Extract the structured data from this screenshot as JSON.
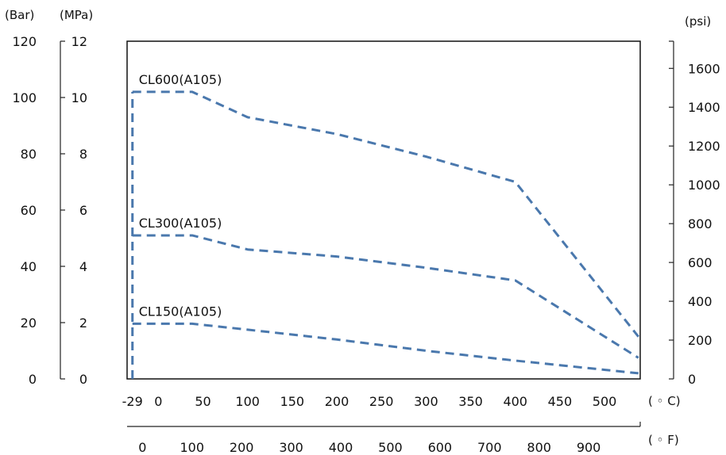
{
  "chart_data": {
    "type": "line",
    "title": "",
    "units": {
      "bar": "(Bar)",
      "mpa": "(MPa)",
      "psi": "(psi)",
      "celsius": "( ◦ C)",
      "fahrenheit": "( ◦ F)"
    },
    "axes": {
      "bar": {
        "ticks": [
          "0",
          "20",
          "40",
          "60",
          "80",
          "100",
          "120"
        ],
        "range": [
          0,
          120
        ]
      },
      "mpa": {
        "ticks": [
          "0",
          "2",
          "4",
          "6",
          "8",
          "10",
          "12"
        ],
        "range": [
          0,
          12
        ]
      },
      "psi": {
        "ticks": [
          "0",
          "200",
          "400",
          "600",
          "800",
          "1000",
          "1200",
          "1400",
          "1600"
        ],
        "range": [
          0,
          1740
        ]
      },
      "celsius": {
        "ticks": [
          "-29",
          "0",
          "50",
          "100",
          "150",
          "200",
          "250",
          "300",
          "350",
          "400",
          "450",
          "500"
        ],
        "range": [
          -35,
          540
        ]
      },
      "fahrenheit": {
        "ticks": [
          "0",
          "100",
          "200",
          "300",
          "400",
          "500",
          "600",
          "700",
          "800",
          "900"
        ],
        "range": [
          -31,
          1004
        ]
      }
    },
    "xlabel": "",
    "ylabel": "",
    "series": [
      {
        "name": "CL600(A105)",
        "x": [
          -29,
          38,
          100,
          200,
          300,
          400,
          538
        ],
        "y": [
          10.2,
          10.2,
          9.3,
          8.7,
          7.9,
          7.0,
          1.5
        ]
      },
      {
        "name": "CL300(A105)",
        "x": [
          -29,
          38,
          100,
          200,
          300,
          400,
          538
        ],
        "y": [
          5.1,
          5.1,
          4.6,
          4.35,
          3.95,
          3.5,
          0.75
        ]
      },
      {
        "name": "CL150(A105)",
        "x": [
          -29,
          38,
          100,
          200,
          300,
          400,
          538
        ],
        "y": [
          1.96,
          1.96,
          1.75,
          1.4,
          1.0,
          0.65,
          0.2
        ]
      }
    ],
    "grid": false,
    "legend": "none",
    "line_color": "#4a78ad"
  }
}
